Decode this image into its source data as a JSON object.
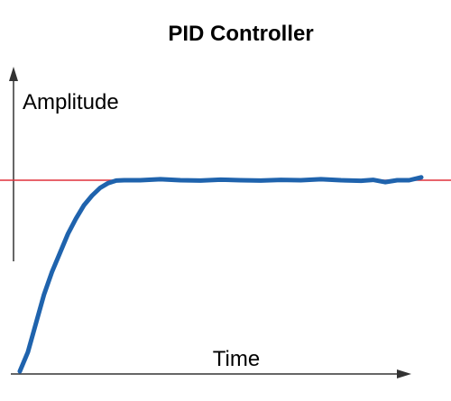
{
  "title": "PID Controller",
  "y_axis_label": "Amplitude",
  "x_axis_label": "Time",
  "colors": {
    "response": "#1f63ad",
    "setpoint": "#e0303a",
    "axis": "#333333",
    "text": "#000000"
  },
  "chart_data": {
    "type": "line",
    "title": "PID Controller",
    "xlabel": "Time",
    "ylabel": "Amplitude",
    "grid": false,
    "ylim": [
      0,
      1.5
    ],
    "xlim": [
      0,
      1
    ],
    "setpoint": 1.0,
    "series": [
      {
        "x": [
          0.0,
          0.02,
          0.04,
          0.06,
          0.08,
          0.1,
          0.12,
          0.14,
          0.16,
          0.18,
          0.2,
          0.22,
          0.24,
          0.26,
          0.28,
          0.3,
          0.35,
          0.4,
          0.45,
          0.5,
          0.55,
          0.6,
          0.65,
          0.7,
          0.75,
          0.8,
          0.85,
          0.88,
          0.91,
          0.94,
          0.97,
          1.0
        ],
        "y": [
          0.0,
          0.1,
          0.25,
          0.4,
          0.52,
          0.62,
          0.72,
          0.8,
          0.87,
          0.92,
          0.96,
          0.985,
          0.998,
          1.0,
          1.0,
          1.0,
          1.005,
          1.0,
          0.998,
          1.003,
          1.0,
          0.998,
          1.002,
          1.0,
          1.005,
          1.0,
          0.997,
          1.002,
          0.99,
          1.0,
          1.0,
          1.015
        ]
      }
    ]
  }
}
